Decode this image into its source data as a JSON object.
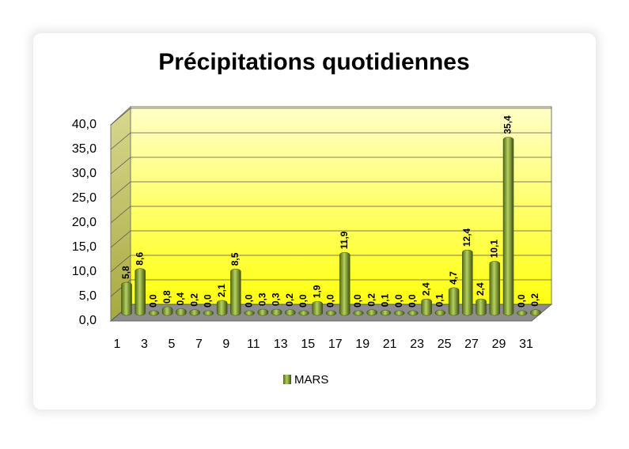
{
  "chart_data": {
    "type": "bar",
    "title": "Précipitations quotidiennes",
    "categories": [
      "1",
      null,
      "3",
      null,
      "5",
      null,
      "7",
      null,
      "9",
      null,
      "11",
      null,
      "13",
      null,
      "15",
      null,
      "17",
      null,
      "19",
      null,
      "21",
      null,
      "23",
      null,
      "25",
      null,
      "27",
      null,
      "29",
      null,
      "31"
    ],
    "series": [
      {
        "name": "MARS",
        "color": "#7a9a2a",
        "values": [
          5.8,
          8.6,
          0.0,
          0.8,
          0.4,
          0.2,
          0.0,
          2.1,
          8.5,
          0.0,
          0.3,
          0.3,
          0.2,
          0.0,
          1.9,
          0.0,
          11.9,
          0.0,
          0.2,
          0.1,
          0.0,
          0.0,
          2.4,
          0.1,
          4.7,
          12.4,
          2.4,
          10.1,
          35.4,
          0.0,
          0.2
        ],
        "value_labels": [
          "5,8",
          "8,6",
          "0,0",
          "0,8",
          "0,4",
          "0,2",
          "0,0",
          "2,1",
          "8,5",
          "0,0",
          "0,3",
          "0,3",
          "0,2",
          "0,0",
          "1,9",
          "0,0",
          "11,9",
          "0,0",
          "0,2",
          "0,1",
          "0,0",
          "0,0",
          "2,4",
          "0,1",
          "4,7",
          "12,4",
          "2,4",
          "10,1",
          "35,4",
          "0,0",
          "0,2"
        ]
      }
    ],
    "ylim": [
      0,
      40
    ],
    "yticks": [
      {
        "value": 0,
        "label": "0,0"
      },
      {
        "value": 5,
        "label": "5,0"
      },
      {
        "value": 10,
        "label": "10,0"
      },
      {
        "value": 15,
        "label": "15,0"
      },
      {
        "value": 20,
        "label": "20,0"
      },
      {
        "value": 25,
        "label": "25,0"
      },
      {
        "value": 30,
        "label": "30,0"
      },
      {
        "value": 35,
        "label": "35,0"
      },
      {
        "value": 40,
        "label": "40,0"
      }
    ],
    "grid": true,
    "legend": "bottom"
  }
}
